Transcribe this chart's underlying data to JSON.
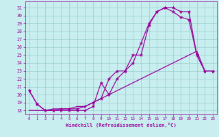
{
  "xlabel": "Windchill (Refroidissement éolien,°C)",
  "bg_color": "#c8eef0",
  "line_color": "#990099",
  "grid_color": "#99cccc",
  "xlim": [
    -0.5,
    23.5
  ],
  "ylim": [
    17.5,
    31.8
  ],
  "xticks": [
    0,
    1,
    2,
    3,
    4,
    5,
    6,
    7,
    8,
    9,
    10,
    11,
    12,
    13,
    14,
    15,
    16,
    17,
    18,
    19,
    20,
    21,
    22,
    23
  ],
  "yticks": [
    18,
    19,
    20,
    21,
    22,
    23,
    24,
    25,
    26,
    27,
    28,
    29,
    30,
    31
  ],
  "line1_x": [
    0,
    1,
    2,
    3,
    4,
    5,
    6,
    7,
    8,
    9,
    10,
    11,
    12,
    13,
    14,
    15,
    16,
    17,
    18,
    19,
    20,
    21,
    22,
    23
  ],
  "line1_y": [
    20.5,
    18.8,
    18.0,
    18.0,
    18.0,
    18.0,
    18.0,
    18.0,
    18.5,
    21.5,
    20.0,
    22.0,
    23.0,
    25.0,
    25.0,
    28.8,
    30.5,
    31.0,
    31.0,
    30.5,
    30.5,
    25.0,
    23.0,
    23.0
  ],
  "line2_x": [
    0,
    1,
    2,
    3,
    4,
    5,
    6,
    7,
    8,
    9,
    10,
    11,
    12,
    13,
    14,
    15,
    16,
    17,
    18,
    19,
    20,
    21,
    22,
    23
  ],
  "line2_y": [
    20.5,
    18.8,
    18.0,
    18.0,
    18.2,
    18.2,
    18.2,
    18.5,
    19.0,
    19.5,
    22.0,
    23.0,
    23.0,
    24.0,
    26.5,
    29.0,
    30.5,
    31.0,
    30.5,
    29.8,
    29.5,
    25.0,
    23.0,
    23.0
  ],
  "line3_x": [
    0,
    1,
    2,
    3,
    4,
    5,
    6,
    7,
    8,
    9,
    10,
    11,
    12,
    13,
    14,
    15,
    16,
    17,
    18,
    19,
    20,
    21,
    22,
    23
  ],
  "line3_y": [
    18.0,
    18.0,
    18.0,
    18.2,
    18.2,
    18.2,
    18.5,
    18.5,
    19.0,
    19.5,
    20.0,
    20.5,
    21.0,
    21.5,
    22.0,
    22.5,
    23.0,
    23.5,
    24.0,
    24.5,
    25.0,
    25.5,
    23.0,
    23.0
  ]
}
